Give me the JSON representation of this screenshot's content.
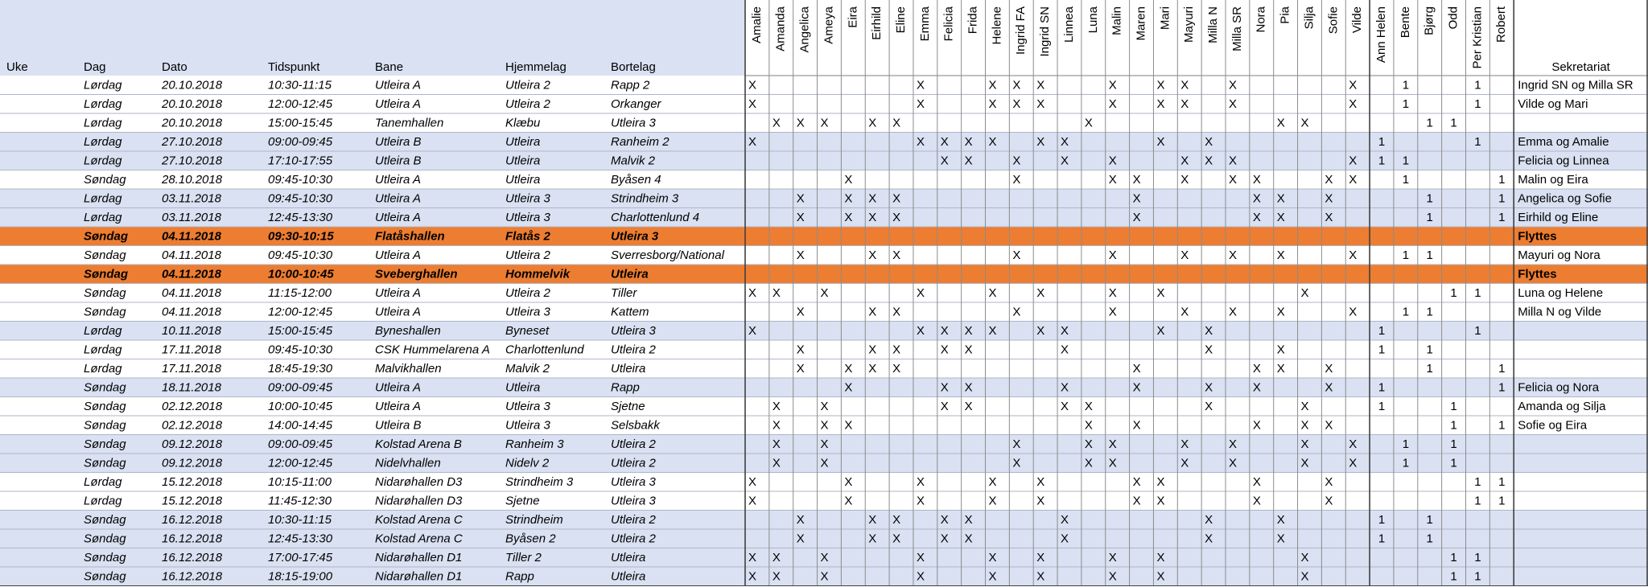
{
  "header": {
    "columns": [
      "Uke",
      "Dag",
      "Dato",
      "Tidspunkt",
      "Bane",
      "Hjemmelag",
      "Bortelag"
    ],
    "players": [
      "Amalie",
      "Amanda",
      "Angelica",
      "Ameya",
      "Eira",
      "Eirhild",
      "Eline",
      "Emma",
      "Felicia",
      "Frida",
      "Helene",
      "Ingrid FA",
      "Ingrid SN",
      "Linnea",
      "Luna",
      "Malin",
      "Maren",
      "Mari",
      "Mayuri",
      "Milla N",
      "Milla SR",
      "Nora",
      "Pia",
      "Silja",
      "Sofie",
      "Vilde"
    ],
    "parents": [
      "Ann Helen",
      "Bente",
      "Bjørg",
      "Odd",
      "Per Kristian",
      "Robert"
    ],
    "sekretariat": "Sekretariat"
  },
  "rows": [
    {
      "fill": "#ffffff",
      "cells": [
        "Lørdag",
        "20.10.2018",
        "10:30-11:15",
        "Utleira A",
        "Utleira 2",
        "Rapp 2"
      ],
      "x": [
        "X",
        null,
        null,
        null,
        null,
        null,
        null,
        "X",
        null,
        null,
        "X",
        "X",
        "X",
        null,
        null,
        "X",
        null,
        "X",
        "X",
        null,
        "X",
        null,
        null,
        null,
        null,
        "X"
      ],
      "p": [
        null,
        1,
        null,
        null,
        1,
        null
      ],
      "sekretariat": "Ingrid SN og Milla SR"
    },
    {
      "fill": "#ffffff",
      "cells": [
        "Lørdag",
        "20.10.2018",
        "12:00-12:45",
        "Utleira A",
        "Utleira 2",
        "Orkanger"
      ],
      "x": [
        "X",
        null,
        null,
        null,
        null,
        null,
        null,
        "X",
        null,
        null,
        "X",
        "X",
        "X",
        null,
        null,
        "X",
        null,
        "X",
        "X",
        null,
        "X",
        null,
        null,
        null,
        null,
        "X"
      ],
      "p": [
        null,
        1,
        null,
        null,
        1,
        null
      ],
      "sekretariat": "Vilde og Mari"
    },
    {
      "fill": "#ffffff",
      "cells": [
        "Lørdag",
        "20.10.2018",
        "15:00-15:45",
        "Tanemhallen",
        "Klæbu",
        "Utleira 3"
      ],
      "x": [
        null,
        "X",
        "X",
        "X",
        null,
        "X",
        "X",
        null,
        null,
        null,
        null,
        null,
        null,
        null,
        "X",
        null,
        null,
        null,
        null,
        null,
        null,
        null,
        "X",
        "X",
        null,
        null
      ],
      "p": [
        null,
        null,
        1,
        1,
        null,
        null
      ]
    },
    {
      "fill": "#d9e1f2",
      "cells": [
        "Lørdag",
        "27.10.2018",
        "09:00-09:45",
        "Utleira B",
        "Utleira",
        "Ranheim 2"
      ],
      "x": [
        "X",
        null,
        null,
        null,
        null,
        null,
        null,
        "X",
        "X",
        "X",
        "X",
        null,
        "X",
        "X",
        null,
        null,
        null,
        "X",
        null,
        "X",
        null,
        null,
        null,
        null,
        null,
        null
      ],
      "p": [
        1,
        null,
        null,
        null,
        1,
        null
      ],
      "sekretariat": "Emma og Amalie"
    },
    {
      "fill": "#d9e1f2",
      "cells": [
        "Lørdag",
        "27.10.2018",
        "17:10-17:55",
        "Utleira B",
        "Utleira",
        "Malvik 2"
      ],
      "x": [
        null,
        null,
        null,
        null,
        null,
        null,
        null,
        null,
        "X",
        "X",
        null,
        "X",
        null,
        "X",
        null,
        "X",
        null,
        null,
        "X",
        "X",
        "X",
        null,
        null,
        null,
        null,
        "X"
      ],
      "p": [
        1,
        1,
        null,
        null,
        null,
        null
      ],
      "sekretariat": "Felicia og Linnea"
    },
    {
      "fill": "#ffffff",
      "cells": [
        "Søndag",
        "28.10.2018",
        "09:45-10:30",
        "Utleira A",
        "Utleira",
        "Byåsen 4"
      ],
      "x": [
        null,
        null,
        null,
        null,
        "X",
        null,
        null,
        null,
        null,
        null,
        null,
        "X",
        null,
        null,
        null,
        "X",
        "X",
        null,
        "X",
        null,
        "X",
        "X",
        null,
        null,
        "X",
        "X"
      ],
      "p": [
        null,
        1,
        null,
        null,
        null,
        1
      ],
      "sekretariat": "Malin og Eira"
    },
    {
      "fill": "#d9e1f2",
      "cells": [
        "Lørdag",
        "03.11.2018",
        "09:45-10:30",
        "Utleira A",
        "Utleira 3",
        "Strindheim 3"
      ],
      "x": [
        null,
        null,
        "X",
        null,
        "X",
        "X",
        "X",
        null,
        null,
        null,
        null,
        null,
        null,
        null,
        null,
        null,
        "X",
        null,
        null,
        null,
        null,
        "X",
        "X",
        null,
        "X",
        null
      ],
      "p": [
        null,
        null,
        1,
        null,
        null,
        1
      ],
      "sekretariat": "Angelica og Sofie"
    },
    {
      "fill": "#d9e1f2",
      "cells": [
        "Lørdag",
        "03.11.2018",
        "12:45-13:30",
        "Utleira A",
        "Utleira 3",
        "Charlottenlund 4"
      ],
      "x": [
        null,
        null,
        "X",
        null,
        "X",
        "X",
        "X",
        null,
        null,
        null,
        null,
        null,
        null,
        null,
        null,
        null,
        "X",
        null,
        null,
        null,
        null,
        "X",
        "X",
        null,
        "X",
        null
      ],
      "p": [
        null,
        null,
        1,
        null,
        null,
        1
      ],
      "sekretariat": "Eirhild og Eline"
    },
    {
      "fill": "#ed7d31",
      "bold": true,
      "cells": [
        "Søndag",
        "04.11.2018",
        "09:30-10:15",
        "Flatåshallen",
        "Flatås 2",
        "Utleira 3"
      ],
      "sekretariat": "Flyttes"
    },
    {
      "fill": "#ffffff",
      "cells": [
        "Søndag",
        "04.11.2018",
        "09:45-10:30",
        "Utleira A",
        "Utleira 2",
        "Sverresborg/National"
      ],
      "x": [
        null,
        null,
        "X",
        null,
        null,
        "X",
        "X",
        null,
        null,
        null,
        null,
        "X",
        null,
        null,
        null,
        "X",
        null,
        null,
        "X",
        null,
        "X",
        null,
        "X",
        null,
        null,
        "X"
      ],
      "p": [
        null,
        1,
        1,
        null,
        null,
        null
      ],
      "sekretariat": "Mayuri og Nora"
    },
    {
      "fill": "#ed7d31",
      "bold": true,
      "cells": [
        "Søndag",
        "04.11.2018",
        "10:00-10:45",
        "Sveberghallen",
        "Hommelvik",
        "Utleira"
      ],
      "sekretariat": "Flyttes"
    },
    {
      "fill": "#ffffff",
      "cells": [
        "Søndag",
        "04.11.2018",
        "11:15-12:00",
        "Utleira A",
        "Utleira 2",
        "Tiller"
      ],
      "x": [
        "X",
        "X",
        null,
        "X",
        null,
        null,
        null,
        "X",
        null,
        null,
        "X",
        null,
        "X",
        null,
        null,
        "X",
        null,
        "X",
        null,
        null,
        null,
        null,
        null,
        "X",
        null,
        null
      ],
      "p": [
        null,
        null,
        null,
        1,
        1,
        null
      ],
      "sekretariat": "Luna og Helene"
    },
    {
      "fill": "#ffffff",
      "cells": [
        "Søndag",
        "04.11.2018",
        "12:00-12:45",
        "Utleira A",
        "Utleira 3",
        "Kattem"
      ],
      "x": [
        null,
        null,
        "X",
        null,
        null,
        "X",
        "X",
        null,
        null,
        null,
        null,
        "X",
        null,
        null,
        null,
        "X",
        null,
        null,
        "X",
        null,
        "X",
        null,
        "X",
        null,
        null,
        "X"
      ],
      "p": [
        null,
        1,
        1,
        null,
        null,
        null
      ],
      "sekretariat": "Milla N og Vilde"
    },
    {
      "fill": "#d9e1f2",
      "cells": [
        "Lørdag",
        "10.11.2018",
        "15:00-15:45",
        "Byneshallen",
        "Byneset",
        "Utleira 3"
      ],
      "x": [
        "X",
        null,
        null,
        null,
        null,
        null,
        null,
        "X",
        "X",
        "X",
        "X",
        null,
        "X",
        "X",
        null,
        null,
        null,
        "X",
        null,
        "X",
        null,
        null,
        null,
        null,
        null,
        null
      ],
      "p": [
        1,
        null,
        null,
        null,
        1,
        null
      ]
    },
    {
      "fill": "#ffffff",
      "cells": [
        "Lørdag",
        "17.11.2018",
        "09:45-10:30",
        "CSK Hummelarena A",
        "Charlottenlund",
        "Utleira 2"
      ],
      "x": [
        null,
        null,
        "X",
        null,
        null,
        "X",
        "X",
        null,
        "X",
        "X",
        null,
        null,
        null,
        "X",
        null,
        null,
        null,
        null,
        null,
        "X",
        null,
        null,
        "X",
        null,
        null,
        null
      ],
      "p": [
        1,
        null,
        1,
        null,
        null,
        null
      ]
    },
    {
      "fill": "#ffffff",
      "cells": [
        "Lørdag",
        "17.11.2018",
        "18:45-19:30",
        "Malvikhallen",
        "Malvik 2",
        "Utleira"
      ],
      "x": [
        null,
        null,
        "X",
        null,
        "X",
        "X",
        "X",
        null,
        null,
        null,
        null,
        null,
        null,
        null,
        null,
        null,
        "X",
        null,
        null,
        null,
        null,
        "X",
        "X",
        null,
        "X",
        null
      ],
      "p": [
        null,
        null,
        1,
        null,
        null,
        1
      ]
    },
    {
      "fill": "#d9e1f2",
      "cells": [
        "Søndag",
        "18.11.2018",
        "09:00-09:45",
        "Utleira A",
        "Utleira",
        "Rapp"
      ],
      "x": [
        null,
        null,
        null,
        null,
        "X",
        null,
        null,
        null,
        "X",
        "X",
        null,
        null,
        null,
        "X",
        null,
        null,
        "X",
        null,
        null,
        "X",
        null,
        "X",
        null,
        null,
        "X",
        null
      ],
      "p": [
        1,
        null,
        null,
        null,
        null,
        1
      ],
      "sekretariat": "Felicia og Nora"
    },
    {
      "fill": "#ffffff",
      "cells": [
        "Søndag",
        "02.12.2018",
        "10:00-10:45",
        "Utleira A",
        "Utleira 3",
        "Sjetne"
      ],
      "x": [
        null,
        "X",
        null,
        "X",
        null,
        null,
        null,
        null,
        "X",
        "X",
        null,
        null,
        null,
        "X",
        "X",
        null,
        null,
        null,
        null,
        "X",
        null,
        null,
        null,
        "X",
        null,
        null
      ],
      "p": [
        1,
        null,
        null,
        1,
        null,
        null
      ],
      "sekretariat": "Amanda og Silja"
    },
    {
      "fill": "#ffffff",
      "cells": [
        "Søndag",
        "02.12.2018",
        "14:00-14:45",
        "Utleira B",
        "Utleira 3",
        "Selsbakk"
      ],
      "x": [
        null,
        "X",
        null,
        "X",
        "X",
        null,
        null,
        null,
        null,
        null,
        null,
        null,
        null,
        null,
        "X",
        null,
        "X",
        null,
        null,
        null,
        null,
        "X",
        null,
        "X",
        "X",
        null
      ],
      "p": [
        null,
        null,
        null,
        1,
        null,
        1
      ],
      "sekretariat": "Sofie og Eira"
    },
    {
      "fill": "#d9e1f2",
      "cells": [
        "Søndag",
        "09.12.2018",
        "09:00-09:45",
        "Kolstad Arena B",
        "Ranheim 3",
        "Utleira 2"
      ],
      "x": [
        null,
        "X",
        null,
        "X",
        null,
        null,
        null,
        null,
        null,
        null,
        null,
        "X",
        null,
        null,
        "X",
        "X",
        null,
        null,
        "X",
        null,
        "X",
        null,
        null,
        "X",
        null,
        "X"
      ],
      "p": [
        null,
        1,
        null,
        1,
        null,
        null
      ]
    },
    {
      "fill": "#d9e1f2",
      "cells": [
        "Søndag",
        "09.12.2018",
        "12:00-12:45",
        "Nidelvhallen",
        "Nidelv 2",
        "Utleira 2"
      ],
      "x": [
        null,
        "X",
        null,
        "X",
        null,
        null,
        null,
        null,
        null,
        null,
        null,
        "X",
        null,
        null,
        "X",
        "X",
        null,
        null,
        "X",
        null,
        "X",
        null,
        null,
        "X",
        null,
        "X"
      ],
      "p": [
        null,
        1,
        null,
        1,
        null,
        null
      ]
    },
    {
      "fill": "#ffffff",
      "cells": [
        "Lørdag",
        "15.12.2018",
        "10:15-11:00",
        "Nidarøhallen D3",
        "Strindheim 3",
        "Utleira 3"
      ],
      "x": [
        "X",
        null,
        null,
        null,
        "X",
        null,
        null,
        "X",
        null,
        null,
        "X",
        null,
        "X",
        null,
        null,
        null,
        "X",
        "X",
        null,
        null,
        null,
        "X",
        null,
        null,
        "X",
        null
      ],
      "p": [
        null,
        null,
        null,
        null,
        1,
        1
      ]
    },
    {
      "fill": "#ffffff",
      "cells": [
        "Lørdag",
        "15.12.2018",
        "11:45-12:30",
        "Nidarøhallen D3",
        "Sjetne",
        "Utleira 3"
      ],
      "x": [
        "X",
        null,
        null,
        null,
        "X",
        null,
        null,
        "X",
        null,
        null,
        "X",
        null,
        "X",
        null,
        null,
        null,
        "X",
        "X",
        null,
        null,
        null,
        "X",
        null,
        null,
        "X",
        null
      ],
      "p": [
        null,
        null,
        null,
        null,
        1,
        1
      ]
    },
    {
      "fill": "#d9e1f2",
      "cells": [
        "Søndag",
        "16.12.2018",
        "10:30-11:15",
        "Kolstad Arena C",
        "Strindheim",
        "Utleira 2"
      ],
      "x": [
        null,
        null,
        "X",
        null,
        null,
        "X",
        "X",
        null,
        "X",
        "X",
        null,
        null,
        null,
        "X",
        null,
        null,
        null,
        null,
        null,
        "X",
        null,
        null,
        "X",
        null,
        null,
        null
      ],
      "p": [
        1,
        null,
        1,
        null,
        null,
        null
      ]
    },
    {
      "fill": "#d9e1f2",
      "cells": [
        "Søndag",
        "16.12.2018",
        "12:45-13:30",
        "Kolstad Arena C",
        "Byåsen 2",
        "Utleira 2"
      ],
      "x": [
        null,
        null,
        "X",
        null,
        null,
        "X",
        "X",
        null,
        "X",
        "X",
        null,
        null,
        null,
        "X",
        null,
        null,
        null,
        null,
        null,
        "X",
        null,
        null,
        "X",
        null,
        null,
        null
      ],
      "p": [
        1,
        null,
        1,
        null,
        null,
        null
      ]
    },
    {
      "fill": "#d9e1f2",
      "cells": [
        "Søndag",
        "16.12.2018",
        "17:00-17:45",
        "Nidarøhallen D1",
        "Tiller 2",
        "Utleira"
      ],
      "x": [
        "X",
        "X",
        null,
        "X",
        null,
        null,
        null,
        "X",
        null,
        null,
        "X",
        null,
        "X",
        null,
        null,
        "X",
        null,
        "X",
        null,
        null,
        null,
        null,
        null,
        "X",
        null,
        null
      ],
      "p": [
        null,
        null,
        null,
        1,
        1,
        null
      ]
    },
    {
      "fill": "#d9e1f2",
      "cells": [
        "Søndag",
        "16.12.2018",
        "18:15-19:00",
        "Nidarøhallen D1",
        "Rapp",
        "Utleira"
      ],
      "x": [
        "X",
        "X",
        null,
        "X",
        null,
        null,
        null,
        "X",
        null,
        null,
        "X",
        null,
        "X",
        null,
        null,
        "X",
        null,
        "X",
        null,
        null,
        null,
        null,
        null,
        "X",
        null,
        null
      ],
      "p": [
        null,
        null,
        null,
        1,
        1,
        null
      ]
    }
  ]
}
